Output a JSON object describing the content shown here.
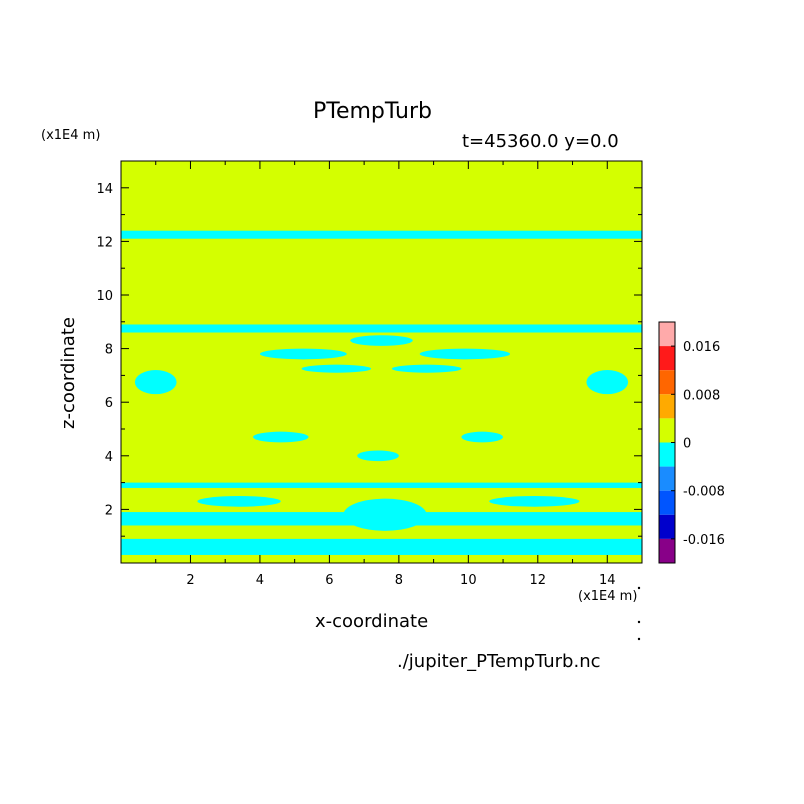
{
  "chart_data": {
    "type": "heatmap",
    "title": "PTempTurb",
    "subtitle": "t=45360.0 y=0.0",
    "xlabel": "x-coordinate",
    "ylabel": "z-coordinate",
    "x_unit": "(x1E4 m)",
    "y_unit": "(x1E4 m)",
    "xlim": [
      0,
      15
    ],
    "ylim": [
      0,
      15
    ],
    "x_ticks": [
      2,
      4,
      6,
      8,
      10,
      12,
      14
    ],
    "y_ticks": [
      2,
      4,
      6,
      8,
      10,
      12,
      14
    ],
    "x_tick_labels": [
      "2",
      "4",
      "6",
      "8",
      "10",
      "12",
      "14"
    ],
    "y_tick_labels": [
      "2",
      "4",
      "6",
      "8",
      "10",
      "12",
      "14"
    ],
    "background_level_color": "#d4ff00",
    "negative_level_color": "#00ffff",
    "colorbar": {
      "levels": [
        {
          "range": [
            0.016,
            0.02
          ],
          "color": "#ffaaaa"
        },
        {
          "range": [
            0.012,
            0.016
          ],
          "color": "#ff1a1a"
        },
        {
          "range": [
            0.008,
            0.012
          ],
          "color": "#ff6600"
        },
        {
          "range": [
            0.004,
            0.008
          ],
          "color": "#ffaa00"
        },
        {
          "range": [
            0.0,
            0.004
          ],
          "color": "#d4ff00"
        },
        {
          "range": [
            -0.004,
            0.0
          ],
          "color": "#00ffff"
        },
        {
          "range": [
            -0.008,
            -0.004
          ],
          "color": "#1a8cff"
        },
        {
          "range": [
            -0.012,
            -0.008
          ],
          "color": "#0055ff"
        },
        {
          "range": [
            -0.016,
            -0.012
          ],
          "color": "#0000cc"
        },
        {
          "range": [
            -0.02,
            -0.016
          ],
          "color": "#880088"
        }
      ],
      "tick_labels": [
        "0.016",
        "0.008",
        "0",
        "-0.008",
        "-0.016"
      ],
      "tick_values": [
        0.016,
        0.008,
        0,
        -0.008,
        -0.016
      ]
    },
    "negative_regions": [
      {
        "shape": "band",
        "z_range": [
          12.1,
          12.4
        ]
      },
      {
        "shape": "band",
        "z_range": [
          8.6,
          8.9
        ]
      },
      {
        "shape": "band",
        "z_range": [
          2.8,
          3.0
        ]
      },
      {
        "shape": "band",
        "z_range": [
          0.3,
          0.9
        ]
      },
      {
        "shape": "band",
        "z_range": [
          1.4,
          1.9
        ]
      },
      {
        "shape": "blob",
        "x": [
          4.0,
          6.5
        ],
        "z": [
          7.6,
          8.0
        ]
      },
      {
        "shape": "blob",
        "x": [
          8.6,
          11.2
        ],
        "z": [
          7.6,
          8.0
        ]
      },
      {
        "shape": "blob",
        "x": [
          5.2,
          7.2
        ],
        "z": [
          7.1,
          7.4
        ]
      },
      {
        "shape": "blob",
        "x": [
          7.8,
          9.8
        ],
        "z": [
          7.1,
          7.4
        ]
      },
      {
        "shape": "blob",
        "x": [
          6.6,
          8.4
        ],
        "z": [
          8.1,
          8.5
        ]
      },
      {
        "shape": "blob",
        "x": [
          0.4,
          1.6
        ],
        "z": [
          6.3,
          7.2
        ]
      },
      {
        "shape": "blob",
        "x": [
          13.4,
          14.6
        ],
        "z": [
          6.3,
          7.2
        ]
      },
      {
        "shape": "blob",
        "x": [
          2.2,
          4.6
        ],
        "z": [
          2.1,
          2.5
        ]
      },
      {
        "shape": "blob",
        "x": [
          10.6,
          13.2
        ],
        "z": [
          2.1,
          2.5
        ]
      },
      {
        "shape": "blob",
        "x": [
          6.4,
          8.8
        ],
        "z": [
          1.2,
          2.4
        ]
      },
      {
        "shape": "blob",
        "x": [
          3.8,
          5.4
        ],
        "z": [
          4.5,
          4.9
        ]
      },
      {
        "shape": "blob",
        "x": [
          9.8,
          11.0
        ],
        "z": [
          4.5,
          4.9
        ]
      },
      {
        "shape": "blob",
        "x": [
          6.8,
          8.0
        ],
        "z": [
          3.8,
          4.2
        ]
      }
    ]
  },
  "source_file": "./jupiter_PTempTurb.nc"
}
